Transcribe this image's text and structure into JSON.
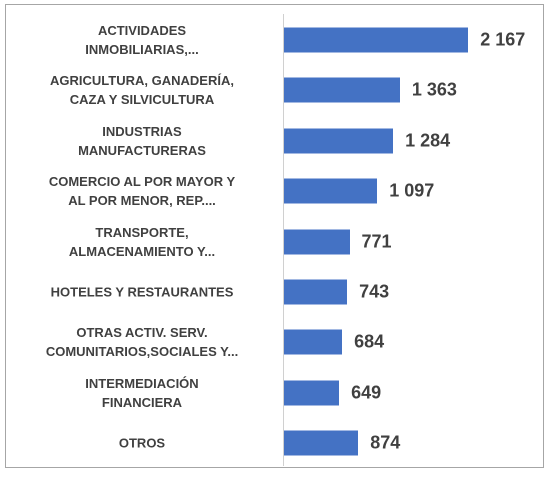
{
  "chart_data": {
    "type": "bar",
    "orientation": "horizontal",
    "categories": [
      "ACTIVIDADES\nINMOBILIARIAS,...",
      "AGRICULTURA, GANADERÍA,\nCAZA Y SILVICULTURA",
      "INDUSTRIAS\nMANUFACTURERAS",
      "COMERCIO AL POR MAYOR Y\nAL POR MENOR, REP....",
      "TRANSPORTE,\nALMACENAMIENTO Y...",
      "HOTELES Y RESTAURANTES",
      "OTRAS ACTIV. SERV.\nCOMUNITARIOS,SOCIALES Y...",
      "INTERMEDIACIÓN\nFINANCIERA",
      "OTROS"
    ],
    "values": [
      2167,
      1363,
      1284,
      1097,
      771,
      743,
      684,
      649,
      874
    ],
    "value_labels": [
      "2 167",
      "1 363",
      "1 284",
      "1 097",
      "771",
      "743",
      "684",
      "649",
      "874"
    ],
    "color": "#4472c4",
    "xlim": [
      0,
      2400
    ]
  }
}
